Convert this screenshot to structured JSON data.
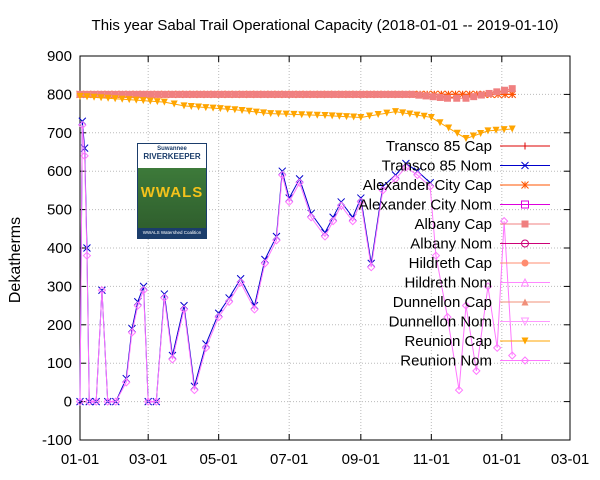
{
  "chart_data": {
    "type": "line",
    "title": "This year Sabal Trail Operational Capacity (2018-01-01 -- 2019-01-10)",
    "ylabel": "Dekatherms",
    "xlabel": "",
    "ylim": [
      -100,
      900
    ],
    "xlim": [
      "2018-01-01",
      "2019-03-01"
    ],
    "x_ticks": [
      "01-01",
      "03-01",
      "05-01",
      "07-01",
      "09-01",
      "11-01",
      "01-01",
      "03-01"
    ],
    "y_ticks": [
      "-100",
      "0",
      "100",
      "200",
      "300",
      "400",
      "500",
      "600",
      "700",
      "800",
      "900"
    ],
    "legend_position": "right",
    "grid": true,
    "series": [
      {
        "name": "Transco 85 Cap",
        "color": "#dd0000",
        "marker": "+",
        "x": [
          "2018-01-01",
          "2019-01-10"
        ],
        "y": [
          800,
          800
        ]
      },
      {
        "name": "Transco 85 Nom",
        "color": "#0000cc",
        "marker": "x",
        "x": [
          "2018-01-01",
          "2018-01-03",
          "2018-01-05",
          "2018-01-07",
          "2018-01-09",
          "2018-01-15",
          "2018-01-20",
          "2018-01-25",
          "2018-02-01",
          "2018-02-10",
          "2018-02-15",
          "2018-02-20",
          "2018-02-25",
          "2018-03-01",
          "2018-03-08",
          "2018-03-15",
          "2018-03-22",
          "2018-04-01",
          "2018-04-10",
          "2018-04-20",
          "2018-05-01",
          "2018-05-10",
          "2018-05-20",
          "2018-06-01",
          "2018-06-10",
          "2018-06-20",
          "2018-06-25",
          "2018-07-01",
          "2018-07-10",
          "2018-07-20",
          "2018-08-01",
          "2018-08-15",
          "2018-08-25",
          "2018-09-01",
          "2018-09-10",
          "2018-09-20",
          "2018-10-01",
          "2018-10-10",
          "2018-10-20",
          "2018-10-31"
        ],
        "y": [
          0,
          730,
          660,
          400,
          0,
          0,
          290,
          0,
          0,
          60,
          190,
          260,
          300,
          0,
          0,
          280,
          120,
          250,
          40,
          150,
          230,
          270,
          320,
          250,
          370,
          430,
          600,
          530,
          580,
          490,
          440,
          520,
          480,
          530,
          360,
          560,
          590,
          620,
          600,
          570
        ]
      },
      {
        "name": "Alexander City Cap",
        "color": "#ff5500",
        "marker": "*",
        "x": [
          "2018-01-01",
          "2019-01-10"
        ],
        "y": [
          800,
          800
        ]
      },
      {
        "name": "Alexander City Nom",
        "color": "#dd00dd",
        "marker": "square-open",
        "x": [],
        "y": []
      },
      {
        "name": "Albany Cap",
        "color": "#f08080",
        "marker": "square",
        "x": [
          "2018-01-01",
          "2018-10-15",
          "2018-11-15",
          "2018-12-01",
          "2019-01-10"
        ],
        "y": [
          800,
          800,
          790,
          790,
          815
        ]
      },
      {
        "name": "Albany Nom",
        "color": "#cc0077",
        "marker": "circle-open",
        "x": [],
        "y": []
      },
      {
        "name": "Hildreth Cap",
        "color": "#ff8c70",
        "marker": "circle",
        "x": [],
        "y": []
      },
      {
        "name": "Hildreth Nom",
        "color": "#ff88ff",
        "marker": "triangle-open",
        "x": [],
        "y": []
      },
      {
        "name": "Dunnellon Cap",
        "color": "#f0907a",
        "marker": "triangle",
        "x": [],
        "y": []
      },
      {
        "name": "Dunnellon Nom",
        "color": "#ff99ff",
        "marker": "triangle-down-open",
        "x": [],
        "y": []
      },
      {
        "name": "Reunion Cap",
        "color": "#ffa500",
        "marker": "triangle-down",
        "x": [
          "2018-01-01",
          "2018-03-15",
          "2018-04-01",
          "2018-05-15",
          "2018-06-15",
          "2018-08-01",
          "2018-09-01",
          "2018-10-01",
          "2018-11-01",
          "2018-12-01",
          "2018-12-20",
          "2019-01-10"
        ],
        "y": [
          795,
          780,
          770,
          760,
          750,
          745,
          740,
          755,
          740,
          685,
          705,
          710
        ]
      },
      {
        "name": "Reunion Nom",
        "color": "#ff77ff",
        "marker": "diamond-open",
        "x": [
          "2018-01-01",
          "2018-01-03",
          "2018-01-05",
          "2018-01-07",
          "2018-01-09",
          "2018-01-15",
          "2018-01-20",
          "2018-01-25",
          "2018-02-01",
          "2018-02-10",
          "2018-02-15",
          "2018-02-20",
          "2018-02-25",
          "2018-03-01",
          "2018-03-08",
          "2018-03-15",
          "2018-03-22",
          "2018-04-01",
          "2018-04-10",
          "2018-04-20",
          "2018-05-01",
          "2018-05-10",
          "2018-05-20",
          "2018-06-01",
          "2018-06-10",
          "2018-06-20",
          "2018-06-25",
          "2018-07-01",
          "2018-07-10",
          "2018-07-20",
          "2018-08-01",
          "2018-08-15",
          "2018-08-25",
          "2018-09-01",
          "2018-09-10",
          "2018-09-20",
          "2018-10-01",
          "2018-10-10",
          "2018-10-20",
          "2018-10-31",
          "2018-11-05",
          "2018-11-15",
          "2018-11-25",
          "2018-12-01",
          "2018-12-10",
          "2018-12-20",
          "2018-12-28",
          "2019-01-03",
          "2019-01-10"
        ],
        "y": [
          0,
          720,
          640,
          380,
          0,
          0,
          290,
          0,
          0,
          50,
          180,
          250,
          290,
          0,
          0,
          270,
          110,
          240,
          30,
          140,
          220,
          260,
          310,
          240,
          360,
          420,
          590,
          520,
          570,
          480,
          430,
          510,
          470,
          520,
          350,
          550,
          580,
          610,
          590,
          560,
          380,
          220,
          30,
          250,
          80,
          300,
          140,
          470,
          120
        ]
      }
    ]
  },
  "logo": {
    "line1": "Suwannee",
    "line2": "RIVERKEEPER",
    "word": "WWALS",
    "footer": "WWALS Watershed Coalition"
  }
}
